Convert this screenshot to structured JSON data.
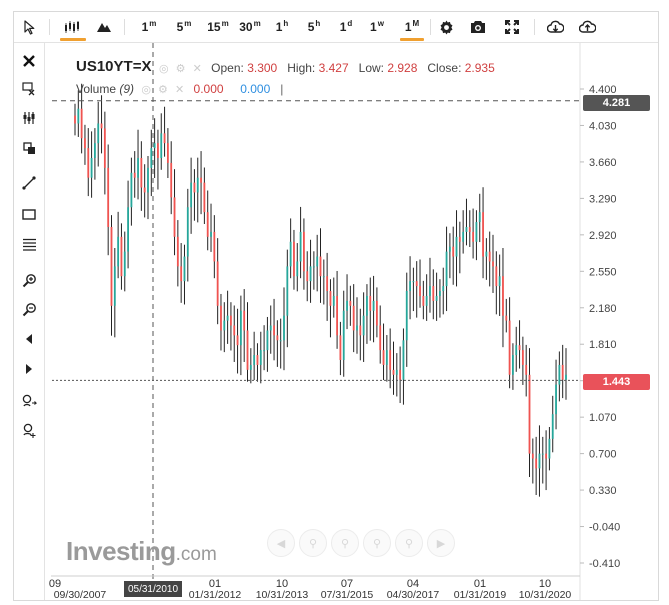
{
  "toolbar": {
    "pointer": "cursor-icon",
    "chart_types": [
      "candlestick-icon",
      "mountain-icon"
    ],
    "timeframes": [
      {
        "base": "1",
        "sup": "m"
      },
      {
        "base": "5",
        "sup": "m"
      },
      {
        "base": "15",
        "sup": "m"
      },
      {
        "base": "30",
        "sup": "m"
      },
      {
        "base": "1",
        "sup": "h"
      },
      {
        "base": "5",
        "sup": "h"
      },
      {
        "base": "1",
        "sup": "d"
      },
      {
        "base": "1",
        "sup": "w"
      },
      {
        "base": "1",
        "sup": "M"
      }
    ],
    "active_timeframe": "1M",
    "actions": [
      "gear-icon",
      "camera-icon",
      "fullscreen-icon",
      "download-icon",
      "upload-icon"
    ]
  },
  "sidebar": {
    "tools": [
      "close-icon",
      "remove-drawings-icon",
      "candle-tool-icon",
      "clone-icon",
      "trendline-icon",
      "rectangle-icon",
      "fibonacci-icon",
      "zoom-in-icon",
      "zoom-out-icon",
      "scroll-left-icon",
      "scroll-right-icon",
      "magnet-icon",
      "crosshair-icon"
    ]
  },
  "legend": {
    "symbol": "US10YT=X",
    "open_label": "Open:",
    "open": "3.300",
    "high_label": "High:",
    "high": "3.427",
    "low_label": "Low:",
    "low": "2.928",
    "close_label": "Close:",
    "close": "2.935",
    "volume_label": "Volume",
    "volume_period": "(9)",
    "volume_a": "0.000",
    "volume_b": "0.000"
  },
  "price_tags": {
    "crosshair": "4.281",
    "last": "1.443",
    "crosshair_color": "#555555",
    "last_color": "#e9525a"
  },
  "crosshair_date": "05/31/2010",
  "watermark": {
    "main": "Investing",
    "suffix": ".com"
  },
  "colors": {
    "up": "#26a69a",
    "down": "#ef5350",
    "wick": "#222222"
  },
  "chart_data": {
    "type": "candlestick",
    "title": "US10YT=X",
    "ylim": [
      -0.41,
      4.6
    ],
    "y_ticks": [
      "4.400",
      "4.030",
      "3.660",
      "3.290",
      "2.920",
      "2.550",
      "2.180",
      "1.810",
      "1.440",
      "1.070",
      "0.700",
      "0.330",
      "-0.040",
      "-0.410"
    ],
    "x_tick_labels": [
      {
        "month": "09",
        "date": "09/30/2007"
      },
      {
        "month": "",
        "date": "05/31/2010"
      },
      {
        "month": "01",
        "date": "01/31/2012"
      },
      {
        "month": "10",
        "date": "10/31/2013"
      },
      {
        "month": "07",
        "date": "07/31/2015"
      },
      {
        "month": "04",
        "date": "04/30/2017"
      },
      {
        "month": "01",
        "date": "01/31/2019"
      },
      {
        "month": "10",
        "date": "10/31/2020"
      }
    ],
    "crosshair_price": 4.281,
    "last_price": 1.443,
    "monthly_close": [
      4.05,
      4.2,
      3.9,
      3.8,
      3.5,
      3.7,
      3.85,
      4.05,
      4.0,
      3.6,
      3.0,
      2.2,
      2.6,
      2.9,
      2.5,
      2.75,
      3.2,
      3.55,
      3.5,
      3.7,
      3.4,
      3.35,
      3.6,
      3.8,
      3.85,
      3.7,
      3.95,
      3.85,
      3.65,
      3.3,
      2.9,
      2.6,
      2.45,
      2.7,
      3.2,
      3.45,
      3.35,
      3.5,
      3.45,
      3.15,
      2.9,
      2.95,
      2.65,
      2.2,
      1.95,
      2.05,
      2.1,
      2.0,
      1.9,
      1.8,
      2.15,
      1.95,
      1.55,
      1.6,
      1.7,
      1.6,
      1.75,
      1.75,
      1.95,
      2.0,
      1.9,
      1.85,
      1.85,
      2.1,
      2.6,
      2.85,
      2.5,
      2.65,
      2.95,
      2.55,
      2.45,
      2.6,
      2.6,
      2.7,
      2.5,
      2.5,
      2.35,
      2.2,
      2.3,
      1.9,
      1.65,
      2.15,
      2.25,
      2.2,
      1.95,
      2.0,
      1.9,
      2.1,
      2.3,
      2.15,
      2.25,
      2.0,
      1.75,
      1.6,
      1.75,
      1.55,
      1.5,
      1.55,
      1.45,
      1.85,
      2.35,
      2.45,
      2.45,
      2.4,
      2.3,
      2.2,
      2.3,
      2.4,
      2.25,
      2.3,
      2.35,
      2.4,
      2.75,
      2.8,
      2.7,
      2.9,
      2.85,
      2.95,
      3.0,
      2.95,
      2.85,
      3.05,
      3.15,
      2.7,
      2.75,
      2.65,
      2.6,
      2.4,
      2.5,
      2.1,
      2.05,
      1.5,
      1.7,
      1.8,
      1.75,
      1.6,
      1.5,
      0.7,
      0.65,
      0.55,
      0.7,
      0.7,
      0.65,
      0.85,
      1.1,
      1.4,
      1.6,
      1.45,
      1.5
    ]
  }
}
